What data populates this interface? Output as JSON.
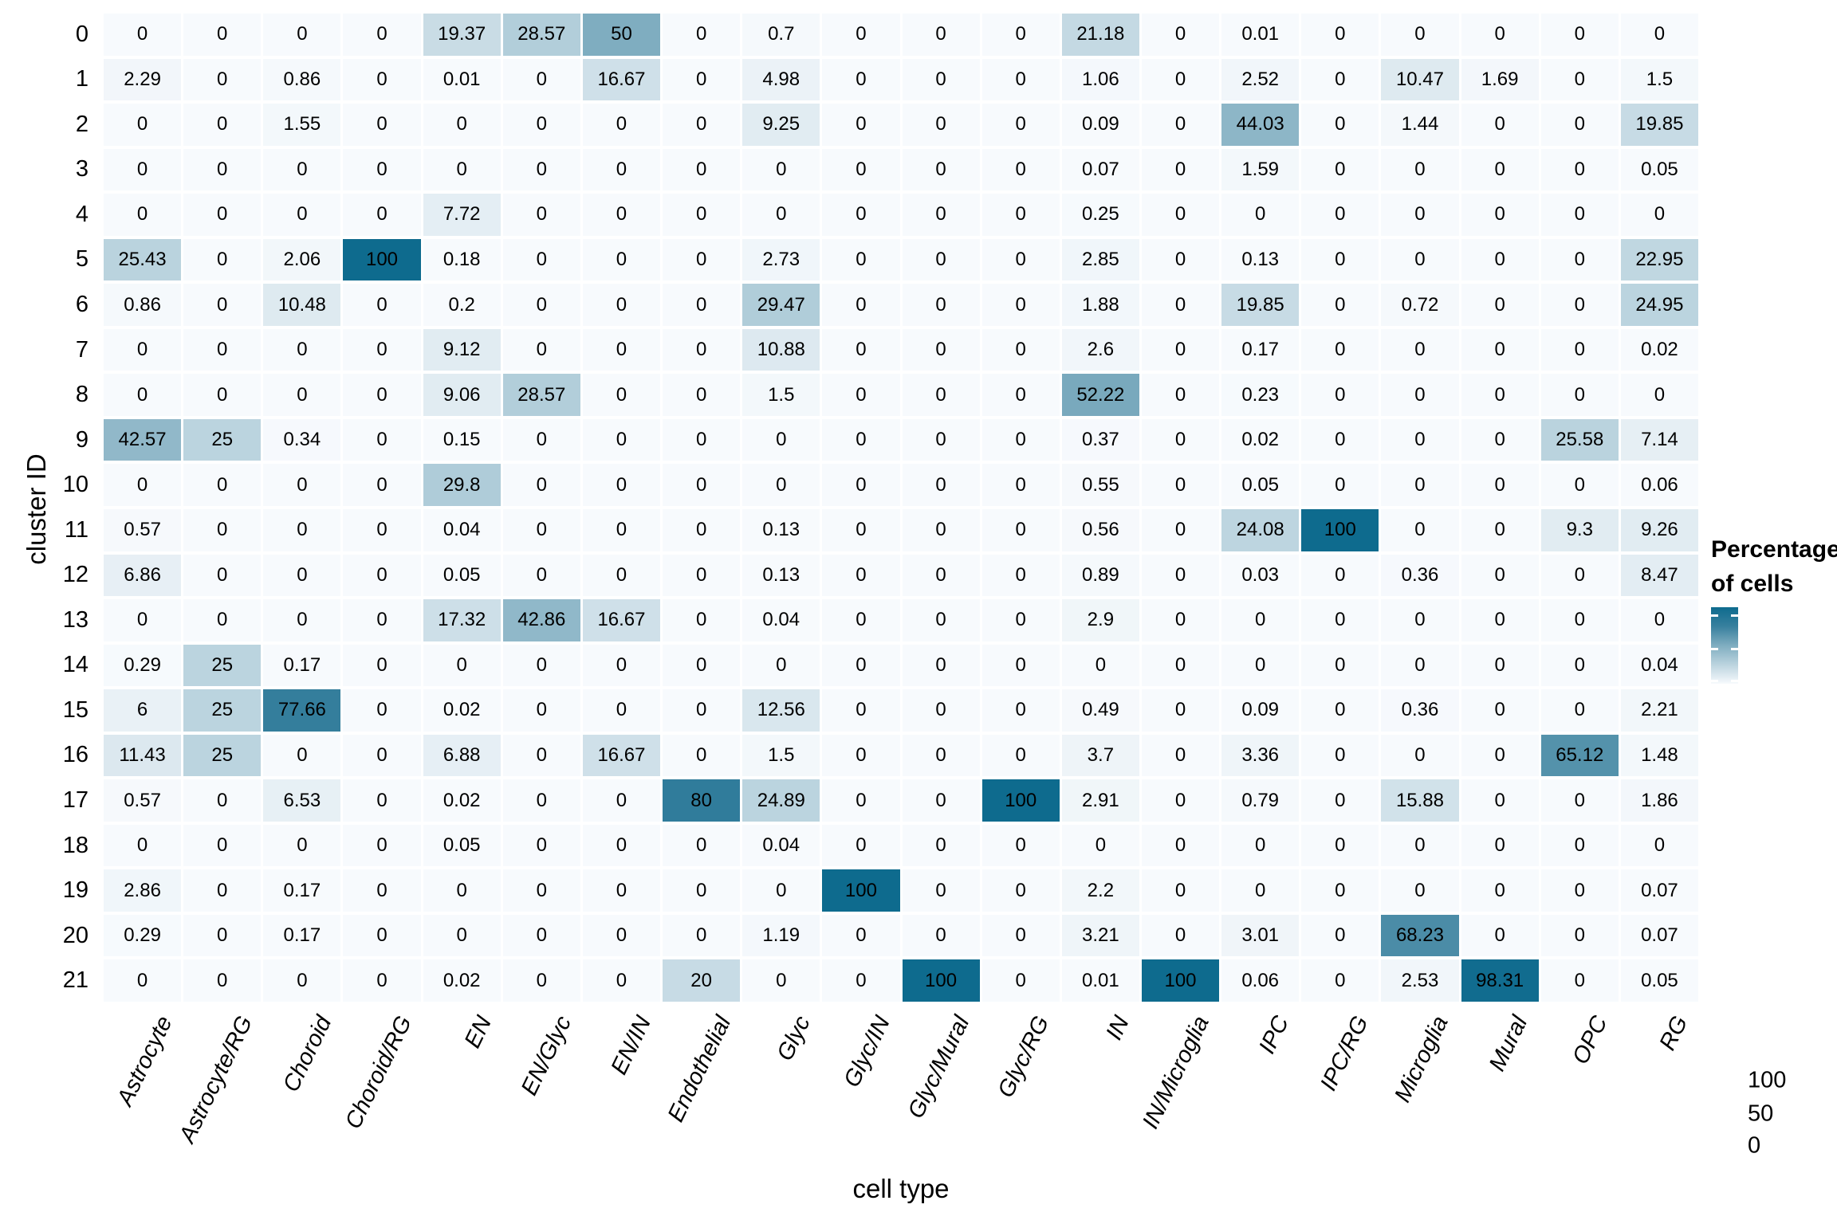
{
  "figure": {
    "x_axis_title": "cell type",
    "y_axis_title": "cluster ID",
    "legend": {
      "title_lines": [
        "Percentage",
        "of cells"
      ],
      "ticks": [
        "100",
        "50",
        "0"
      ]
    }
  },
  "chart_data": {
    "type": "heatmap",
    "title": "",
    "xlabel": "cell type",
    "ylabel": "cluster ID",
    "legend_title": "Percentage of cells",
    "legend_position": "right",
    "grid": false,
    "x_categories": [
      "Astrocyte",
      "Astrocyte/RG",
      "Choroid",
      "Choroid/RG",
      "EN",
      "EN/Glyc",
      "EN/IN",
      "Endothelial",
      "Glyc",
      "Glyc/IN",
      "Glyc/Mural",
      "Glyc/RG",
      "IN",
      "IN/Microglia",
      "IPC",
      "IPC/RG",
      "Microglia",
      "Mural",
      "OPC",
      "RG"
    ],
    "y_categories": [
      "0",
      "1",
      "2",
      "3",
      "4",
      "5",
      "6",
      "7",
      "8",
      "9",
      "10",
      "11",
      "12",
      "13",
      "14",
      "15",
      "16",
      "17",
      "18",
      "19",
      "20",
      "21"
    ],
    "values": [
      [
        "0",
        "0",
        "0",
        "0",
        "19.37",
        "28.57",
        "50",
        "0",
        "0.7",
        "0",
        "0",
        "0",
        "21.18",
        "0",
        "0.01",
        "0",
        "0",
        "0",
        "0",
        "0"
      ],
      [
        "2.29",
        "0",
        "0.86",
        "0",
        "0.01",
        "0",
        "16.67",
        "0",
        "4.98",
        "0",
        "0",
        "0",
        "1.06",
        "0",
        "2.52",
        "0",
        "10.47",
        "1.69",
        "0",
        "1.5"
      ],
      [
        "0",
        "0",
        "1.55",
        "0",
        "0",
        "0",
        "0",
        "0",
        "9.25",
        "0",
        "0",
        "0",
        "0.09",
        "0",
        "44.03",
        "0",
        "1.44",
        "0",
        "0",
        "19.85"
      ],
      [
        "0",
        "0",
        "0",
        "0",
        "0",
        "0",
        "0",
        "0",
        "0",
        "0",
        "0",
        "0",
        "0.07",
        "0",
        "1.59",
        "0",
        "0",
        "0",
        "0",
        "0.05"
      ],
      [
        "0",
        "0",
        "0",
        "0",
        "7.72",
        "0",
        "0",
        "0",
        "0",
        "0",
        "0",
        "0",
        "0.25",
        "0",
        "0",
        "0",
        "0",
        "0",
        "0",
        "0"
      ],
      [
        "25.43",
        "0",
        "2.06",
        "100",
        "0.18",
        "0",
        "0",
        "0",
        "2.73",
        "0",
        "0",
        "0",
        "2.85",
        "0",
        "0.13",
        "0",
        "0",
        "0",
        "0",
        "22.95"
      ],
      [
        "0.86",
        "0",
        "10.48",
        "0",
        "0.2",
        "0",
        "0",
        "0",
        "29.47",
        "0",
        "0",
        "0",
        "1.88",
        "0",
        "19.85",
        "0",
        "0.72",
        "0",
        "0",
        "24.95"
      ],
      [
        "0",
        "0",
        "0",
        "0",
        "9.12",
        "0",
        "0",
        "0",
        "10.88",
        "0",
        "0",
        "0",
        "2.6",
        "0",
        "0.17",
        "0",
        "0",
        "0",
        "0",
        "0.02"
      ],
      [
        "0",
        "0",
        "0",
        "0",
        "9.06",
        "28.57",
        "0",
        "0",
        "1.5",
        "0",
        "0",
        "0",
        "52.22",
        "0",
        "0.23",
        "0",
        "0",
        "0",
        "0",
        "0"
      ],
      [
        "42.57",
        "25",
        "0.34",
        "0",
        "0.15",
        "0",
        "0",
        "0",
        "0",
        "0",
        "0",
        "0",
        "0.37",
        "0",
        "0.02",
        "0",
        "0",
        "0",
        "25.58",
        "7.14"
      ],
      [
        "0",
        "0",
        "0",
        "0",
        "29.8",
        "0",
        "0",
        "0",
        "0",
        "0",
        "0",
        "0",
        "0.55",
        "0",
        "0.05",
        "0",
        "0",
        "0",
        "0",
        "0.06"
      ],
      [
        "0.57",
        "0",
        "0",
        "0",
        "0.04",
        "0",
        "0",
        "0",
        "0.13",
        "0",
        "0",
        "0",
        "0.56",
        "0",
        "24.08",
        "100",
        "0",
        "0",
        "9.3",
        "9.26"
      ],
      [
        "6.86",
        "0",
        "0",
        "0",
        "0.05",
        "0",
        "0",
        "0",
        "0.13",
        "0",
        "0",
        "0",
        "0.89",
        "0",
        "0.03",
        "0",
        "0.36",
        "0",
        "0",
        "8.47"
      ],
      [
        "0",
        "0",
        "0",
        "0",
        "17.32",
        "42.86",
        "16.67",
        "0",
        "0.04",
        "0",
        "0",
        "0",
        "2.9",
        "0",
        "0",
        "0",
        "0",
        "0",
        "0",
        "0"
      ],
      [
        "0.29",
        "25",
        "0.17",
        "0",
        "0",
        "0",
        "0",
        "0",
        "0",
        "0",
        "0",
        "0",
        "0",
        "0",
        "0",
        "0",
        "0",
        "0",
        "0",
        "0.04"
      ],
      [
        "6",
        "25",
        "77.66",
        "0",
        "0.02",
        "0",
        "0",
        "0",
        "12.56",
        "0",
        "0",
        "0",
        "0.49",
        "0",
        "0.09",
        "0",
        "0.36",
        "0",
        "0",
        "2.21"
      ],
      [
        "11.43",
        "25",
        "0",
        "0",
        "6.88",
        "0",
        "16.67",
        "0",
        "1.5",
        "0",
        "0",
        "0",
        "3.7",
        "0",
        "3.36",
        "0",
        "0",
        "0",
        "65.12",
        "1.48"
      ],
      [
        "0.57",
        "0",
        "6.53",
        "0",
        "0.02",
        "0",
        "0",
        "80",
        "24.89",
        "0",
        "0",
        "100",
        "2.91",
        "0",
        "0.79",
        "0",
        "15.88",
        "0",
        "0",
        "1.86"
      ],
      [
        "0",
        "0",
        "0",
        "0",
        "0.05",
        "0",
        "0",
        "0",
        "0.04",
        "0",
        "0",
        "0",
        "0",
        "0",
        "0",
        "0",
        "0",
        "0",
        "0",
        "0"
      ],
      [
        "2.86",
        "0",
        "0.17",
        "0",
        "0",
        "0",
        "0",
        "0",
        "0",
        "100",
        "0",
        "0",
        "2.2",
        "0",
        "0",
        "0",
        "0",
        "0",
        "0",
        "0.07"
      ],
      [
        "0.29",
        "0",
        "0.17",
        "0",
        "0",
        "0",
        "0",
        "0",
        "1.19",
        "0",
        "0",
        "0",
        "3.21",
        "0",
        "3.01",
        "0",
        "68.23",
        "0",
        "0",
        "0.07"
      ],
      [
        "0",
        "0",
        "0",
        "0",
        "0.02",
        "0",
        "0",
        "20",
        "0",
        "0",
        "100",
        "0",
        "0.01",
        "100",
        "0.06",
        "0",
        "2.53",
        "98.31",
        "0",
        "0.05"
      ]
    ],
    "colorscale": {
      "min": 0,
      "max": 100,
      "stops": [
        [
          0,
          "#f7fafd"
        ],
        [
          50,
          "#7fadc0"
        ],
        [
          75,
          "#38809e"
        ],
        [
          100,
          "#0e6b8e"
        ]
      ],
      "legend_ticks": [
        100,
        50,
        0
      ]
    }
  }
}
